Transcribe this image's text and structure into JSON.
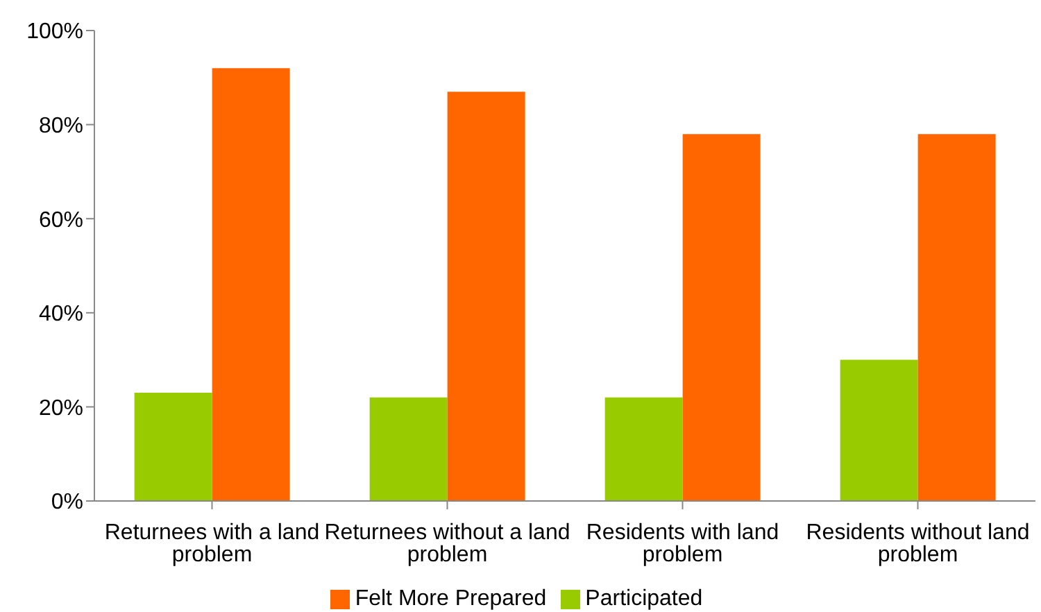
{
  "chart_data": {
    "type": "bar",
    "categories": [
      "Returnees with a land problem",
      "Returnees without a land problem",
      "Residents with land problem",
      "Residents without land problem"
    ],
    "series": [
      {
        "name": "Participated",
        "color": "#99cc00",
        "values": [
          23,
          22,
          22,
          30
        ]
      },
      {
        "name": "Felt More Prepared",
        "color": "#ff6600",
        "values": [
          92,
          87,
          78,
          78
        ]
      }
    ],
    "ylim": [
      0,
      100
    ],
    "yticks": [
      {
        "value": 0,
        "label": "0%"
      },
      {
        "value": 20,
        "label": "20%"
      },
      {
        "value": 40,
        "label": "40%"
      },
      {
        "value": 60,
        "label": "60%"
      },
      {
        "value": 80,
        "label": "80%"
      },
      {
        "value": 100,
        "label": "100%"
      }
    ],
    "grid": false,
    "legend": "bottom"
  }
}
